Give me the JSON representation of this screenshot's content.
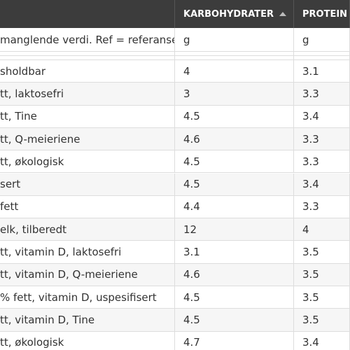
{
  "table": {
    "columns": [
      "KARBOHYDRATER",
      "PROTEIN"
    ],
    "units_row": {
      "label": "manglende verdi. Ref = referanse",
      "cells": [
        "g",
        "g"
      ]
    },
    "rows": [
      {
        "name": "sholdbar",
        "cells": [
          "4",
          "3.1"
        ]
      },
      {
        "name": "tt, laktosefri",
        "cells": [
          "3",
          "3.3"
        ]
      },
      {
        "name": "tt, Tine",
        "cells": [
          "4.5",
          "3.4"
        ]
      },
      {
        "name": "tt, Q-meieriene",
        "cells": [
          "4.6",
          "3.3"
        ]
      },
      {
        "name": "tt, økologisk",
        "cells": [
          "4.5",
          "3.3"
        ]
      },
      {
        "name": "sert",
        "cells": [
          "4.5",
          "3.4"
        ]
      },
      {
        "name": "fett",
        "cells": [
          "4.4",
          "3.3"
        ]
      },
      {
        "name": "elk, tilberedt",
        "cells": [
          "12",
          "4"
        ]
      },
      {
        "name": "tt, vitamin D, laktosefri",
        "cells": [
          "3.1",
          "3.5"
        ]
      },
      {
        "name": "tt, vitamin D, Q-meieriene",
        "cells": [
          "4.6",
          "3.5"
        ]
      },
      {
        "name": "% fett, vitamin D, uspesifisert",
        "cells": [
          "4.5",
          "3.5"
        ]
      },
      {
        "name": "tt, vitamin D, Tine",
        "cells": [
          "4.5",
          "3.5"
        ]
      },
      {
        "name": "tt, økologisk",
        "cells": [
          "4.7",
          "3.4"
        ]
      }
    ]
  }
}
